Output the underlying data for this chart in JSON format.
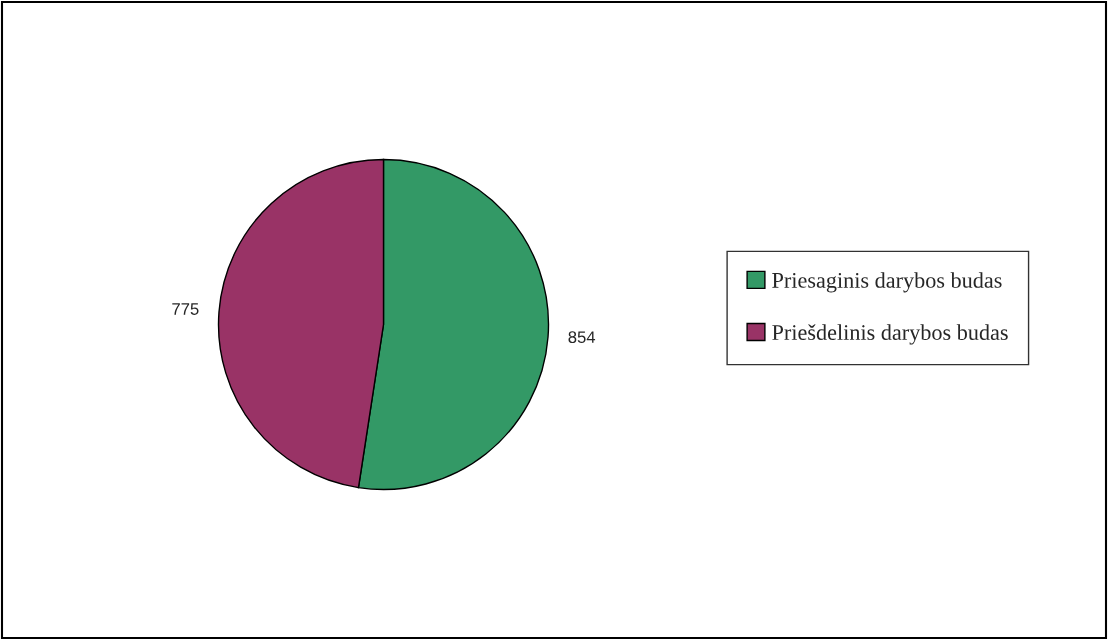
{
  "chart_data": {
    "type": "pie",
    "categories": [
      "Priesaginis darybos budas",
      "Priešdelinis darybos budas"
    ],
    "values": [
      854,
      775
    ],
    "colors": [
      "#339966",
      "#993366"
    ],
    "data_labels": true,
    "legend": "right"
  }
}
